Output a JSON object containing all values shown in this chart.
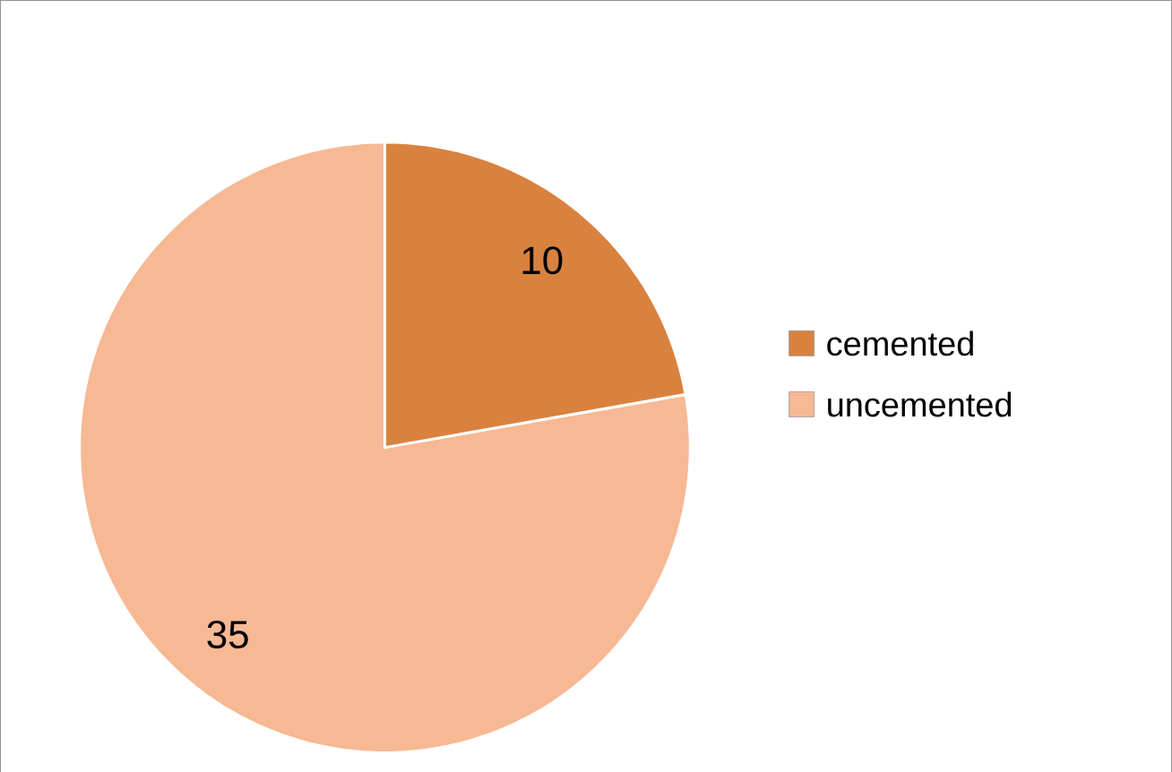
{
  "chart_data": {
    "type": "pie",
    "categories": [
      "cemented",
      "uncemented"
    ],
    "values": [
      10,
      35
    ],
    "colors": [
      "#d9823f",
      "#f7b894"
    ],
    "data_labels": true,
    "legend": "right"
  }
}
